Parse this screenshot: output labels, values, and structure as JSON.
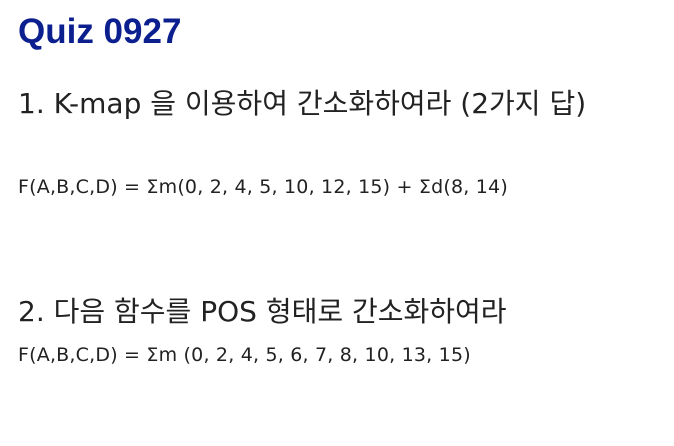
{
  "slide": {
    "title": "Quiz 0927",
    "questions": [
      {
        "heading": "1. K-map 을 이용하여 간소화하여라 (2가지 답)",
        "formula": "F(A,B,C,D) = Σm(0, 2, 4, 5, 10, 12, 15) + Σd(8, 14)"
      },
      {
        "heading": "2. 다음 함수를 POS 형태로 간소화하여라",
        "formula": "F(A,B,C,D) = Σm (0, 2, 4, 5, 6, 7, 8, 10, 13, 15)"
      }
    ],
    "colors": {
      "title": "#0c1f8f",
      "text": "#222222",
      "background": "#ffffff"
    }
  }
}
